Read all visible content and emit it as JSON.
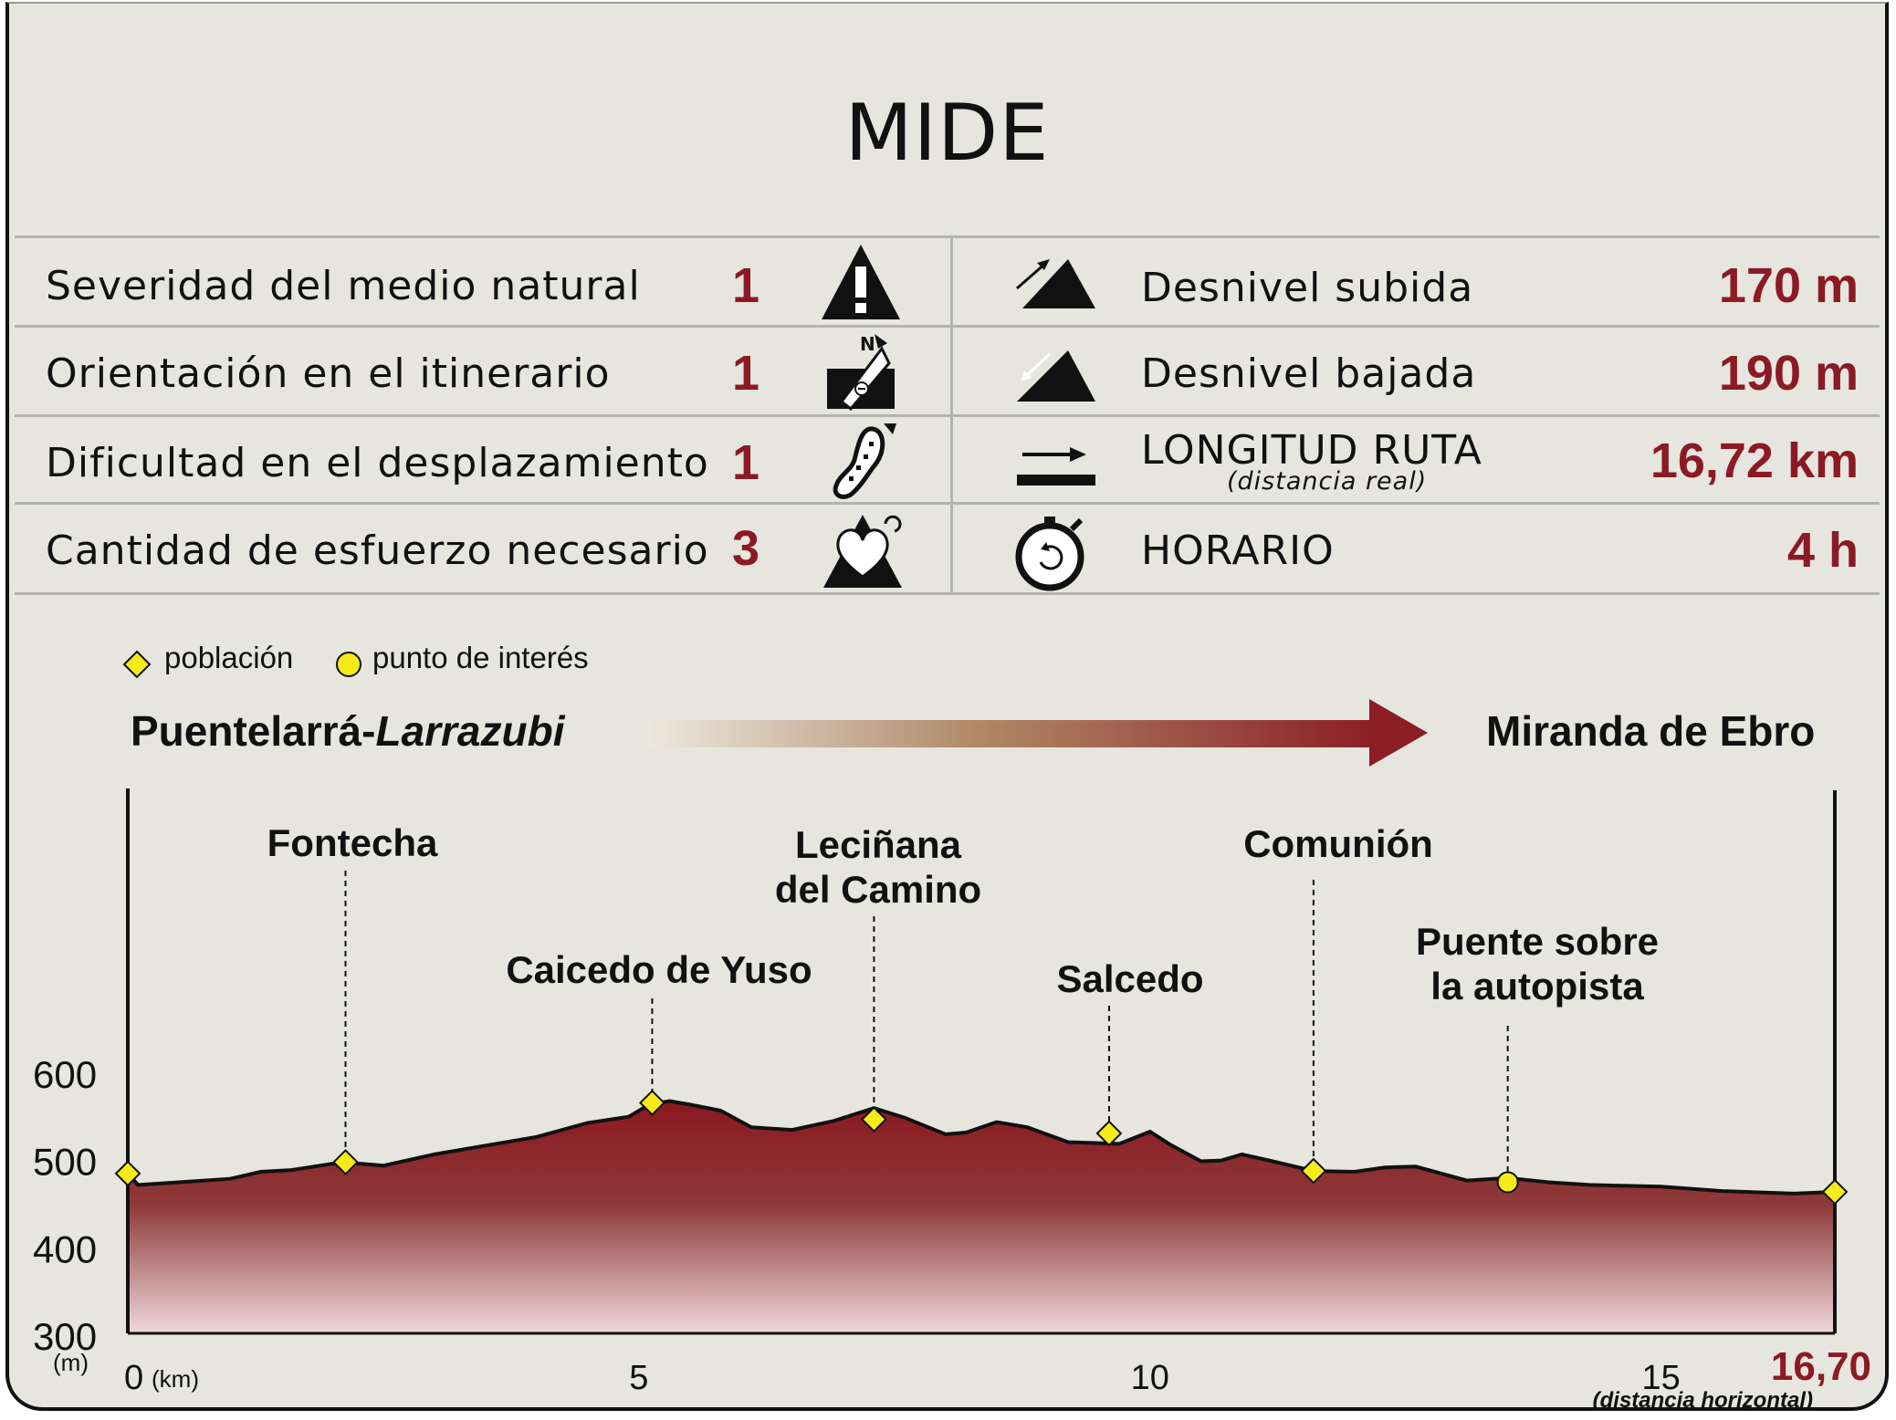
{
  "title": "MIDE",
  "mide": [
    {
      "label": "Severidad del medio natural",
      "value": "1",
      "icon": "warning-icon"
    },
    {
      "label": "Orientación en el itinerario",
      "value": "1",
      "icon": "orientation-icon"
    },
    {
      "label": "Dificultad en el desplazamiento",
      "value": "1",
      "icon": "footprint-icon"
    },
    {
      "label": "Cantidad de esfuerzo necesario",
      "value": "3",
      "icon": "heart-effort-icon"
    }
  ],
  "stats": [
    {
      "label": "Desnivel subida",
      "value": "170 m",
      "icon": "ascent-icon"
    },
    {
      "label": "Desnivel bajada",
      "value": "190 m",
      "icon": "descent-icon"
    },
    {
      "label": "LONGITUD RUTA",
      "sublabel": "(distancia real)",
      "value": "16,72 km",
      "icon": "distance-arrow-icon"
    },
    {
      "label": "HORARIO",
      "value": "4 h",
      "icon": "stopwatch-icon"
    }
  ],
  "legend": {
    "town": "población",
    "poi": "punto de interés"
  },
  "route": {
    "start_prefix": "Puentelarrá-",
    "start_italic": "Larrazubi",
    "end": "Miranda de Ebro"
  },
  "colors": {
    "accent": "#8b1a24",
    "marker_fill": "#f5ea1a"
  },
  "chart_data": {
    "type": "area",
    "xlabel": "(km)",
    "ylabel": "(m)",
    "xlim": [
      0,
      16.7
    ],
    "ylim": [
      300,
      600
    ],
    "x_ticks": [
      0,
      5,
      10,
      15
    ],
    "x_end_label": "16,70",
    "x_end_note": "(distancia horizontal)",
    "y_ticks": [
      300,
      400,
      500,
      600
    ],
    "profile": [
      [
        0,
        483
      ],
      [
        0.1,
        470
      ],
      [
        0.5,
        473
      ],
      [
        1.0,
        477
      ],
      [
        1.3,
        485
      ],
      [
        1.6,
        487
      ],
      [
        2.1,
        496
      ],
      [
        2.5,
        492
      ],
      [
        3.0,
        505
      ],
      [
        3.5,
        515
      ],
      [
        4.0,
        525
      ],
      [
        4.5,
        541
      ],
      [
        4.9,
        548
      ],
      [
        5.1,
        562
      ],
      [
        5.3,
        566
      ],
      [
        5.5,
        562
      ],
      [
        5.8,
        555
      ],
      [
        6.1,
        536
      ],
      [
        6.5,
        533
      ],
      [
        6.9,
        543
      ],
      [
        7.3,
        558
      ],
      [
        7.6,
        547
      ],
      [
        8.0,
        528
      ],
      [
        8.2,
        530
      ],
      [
        8.5,
        542
      ],
      [
        8.8,
        536
      ],
      [
        9.2,
        519
      ],
      [
        9.7,
        517
      ],
      [
        10.0,
        531
      ],
      [
        10.2,
        516
      ],
      [
        10.5,
        497
      ],
      [
        10.7,
        498
      ],
      [
        10.9,
        505
      ],
      [
        11.2,
        497
      ],
      [
        11.6,
        486
      ],
      [
        12.0,
        485
      ],
      [
        12.3,
        490
      ],
      [
        12.6,
        491
      ],
      [
        13.1,
        475
      ],
      [
        13.5,
        478
      ],
      [
        13.9,
        473
      ],
      [
        14.3,
        470
      ],
      [
        15.0,
        468
      ],
      [
        15.6,
        463
      ],
      [
        16.3,
        460
      ],
      [
        16.7,
        462
      ]
    ],
    "waypoints": [
      {
        "name": "",
        "km": 0.0,
        "alt": 483,
        "kind": "town"
      },
      {
        "name": "Fontecha",
        "km": 2.13,
        "alt": 496,
        "kind": "town"
      },
      {
        "name": "Caicedo de Yuso",
        "km": 5.13,
        "alt": 564,
        "kind": "town"
      },
      {
        "name": "Leciñana del Camino",
        "km": 7.3,
        "alt": 545,
        "kind": "town"
      },
      {
        "name": "Salcedo",
        "km": 9.6,
        "alt": 529,
        "kind": "town"
      },
      {
        "name": "Comunión",
        "km": 11.6,
        "alt": 486,
        "kind": "town"
      },
      {
        "name": "Puente sobre la autopista",
        "km": 13.5,
        "alt": 473,
        "kind": "poi"
      },
      {
        "name": "",
        "km": 16.7,
        "alt": 462,
        "kind": "town"
      }
    ]
  }
}
